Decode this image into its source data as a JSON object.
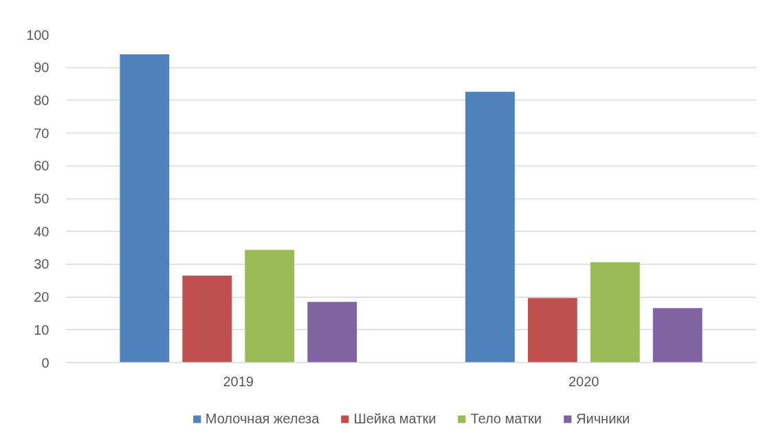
{
  "chart_data": {
    "type": "bar",
    "categories": [
      "2019",
      "2020"
    ],
    "series": [
      {
        "name": "Молочная железа",
        "color": "#4f81bd",
        "values": [
          94.0,
          82.6
        ]
      },
      {
        "name": "Шейка матки",
        "color": "#c0504d",
        "values": [
          26.5,
          19.7
        ]
      },
      {
        "name": "Тело матки",
        "color": "#9bbb59",
        "values": [
          34.4,
          30.6
        ]
      },
      {
        "name": "Яичники",
        "color": "#8064a2",
        "values": [
          18.5,
          16.6
        ]
      }
    ],
    "ylim": [
      0,
      100
    ],
    "yticks": [
      0,
      10,
      20,
      30,
      40,
      50,
      60,
      70,
      80,
      90,
      100
    ],
    "grid": "y",
    "legend": "bottom"
  }
}
